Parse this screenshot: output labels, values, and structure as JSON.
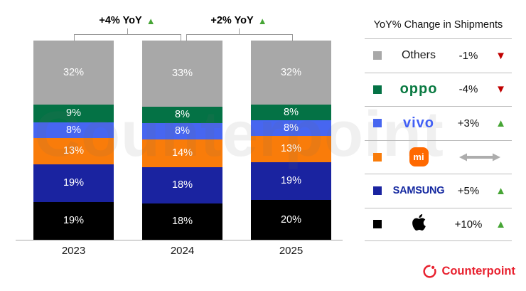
{
  "chart_data": {
    "type": "bar",
    "stacked": true,
    "unit": "%",
    "categories": [
      "2023",
      "2024",
      "2025"
    ],
    "series": [
      {
        "name": "Others",
        "key": "others",
        "color": "#a8a8a8",
        "values": [
          32,
          33,
          32
        ]
      },
      {
        "name": "OPPO",
        "key": "oppo",
        "color": "#047245",
        "values": [
          9,
          8,
          8
        ]
      },
      {
        "name": "vivo",
        "key": "vivo",
        "color": "#4766f0",
        "values": [
          8,
          8,
          8
        ]
      },
      {
        "name": "Xiaomi",
        "key": "xiaomi",
        "color": "#f97c0a",
        "values": [
          13,
          14,
          13
        ]
      },
      {
        "name": "Samsung",
        "key": "samsung",
        "color": "#1a23a0",
        "values": [
          19,
          18,
          19
        ]
      },
      {
        "name": "Apple",
        "key": "apple",
        "color": "#000000",
        "values": [
          19,
          18,
          20
        ]
      }
    ],
    "annotations": [
      {
        "between": [
          "2023",
          "2024"
        ],
        "label": "+4% YoY",
        "direction": "up"
      },
      {
        "between": [
          "2024",
          "2025"
        ],
        "label": "+2% YoY",
        "direction": "up"
      }
    ],
    "grid": false,
    "legend_position": "right"
  },
  "legend": {
    "title": "YoY% Change in Shipments",
    "rows": [
      {
        "key": "others",
        "brand": "Others",
        "change": "-1%",
        "direction": "down"
      },
      {
        "key": "oppo",
        "brand": "oppo",
        "change": "-4%",
        "direction": "down"
      },
      {
        "key": "vivo",
        "brand": "vivo",
        "change": "+3%",
        "direction": "up"
      },
      {
        "key": "xiaomi",
        "brand": "mi",
        "change": "",
        "direction": "flat"
      },
      {
        "key": "samsung",
        "brand": "SAMSUNG",
        "change": "+5%",
        "direction": "up"
      },
      {
        "key": "apple",
        "brand": "",
        "change": "+10%",
        "direction": "up"
      }
    ]
  },
  "branding": {
    "logo_text": "Counterpoint"
  },
  "watermark": "Counterpoint",
  "colors": {
    "up_triangle": "#46a535",
    "down_triangle": "#c00000",
    "brand_red": "#e8202e",
    "bracket_gray": "#9a9a9a",
    "flat_arrow_gray": "#adadad"
  }
}
